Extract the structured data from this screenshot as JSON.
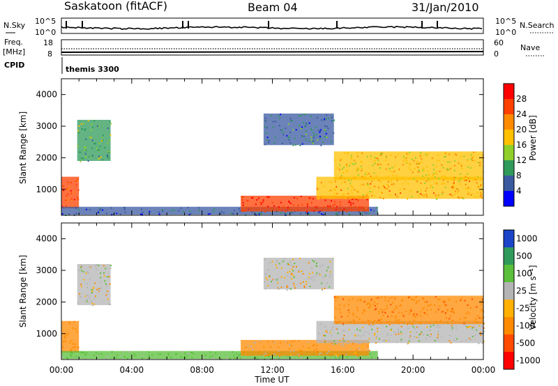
{
  "header": {
    "station": "Saskatoon (fitACF)",
    "beam": "Beam 04",
    "date": "31/Jan/2010"
  },
  "panels": {
    "nsky": {
      "label": "N.Sky",
      "right_label": "N.Search",
      "left_ticks": [
        "10^5",
        "10^0"
      ],
      "right_ticks": [
        "10^5",
        "10^0"
      ]
    },
    "freq": {
      "label_1": "Freq.",
      "label_2": "[MHz]",
      "right_label": "Nave",
      "left_ticks": [
        "18",
        "8"
      ],
      "right_ticks": [
        "60",
        "0"
      ]
    },
    "cpid": {
      "label": "CPID",
      "value": "themis 3300"
    }
  },
  "colorbars": {
    "power": {
      "label": "Power [dB]",
      "ticks": [
        "28",
        "24",
        "20",
        "16",
        "12",
        "8",
        "4"
      ],
      "colors": [
        "#ff0000",
        "#ff4000",
        "#ff8a00",
        "#ffc000",
        "#8fcf2a",
        "#2f9a5a",
        "#3a5aa0",
        "#0000ff"
      ]
    },
    "velocity": {
      "label": "Velocity [m s⁻¹]",
      "ticks": [
        "1000",
        "500",
        "100",
        "25",
        "-25",
        "-100",
        "-500",
        "-1000"
      ],
      "colors": [
        "#1c44c8",
        "#2f9a5a",
        "#5abf3a",
        "#b4b4b4",
        "#ffb000",
        "#ff8a00",
        "#ff4a00",
        "#ff0000"
      ]
    }
  },
  "chart_data": [
    {
      "type": "heatmap",
      "panel": "power",
      "title": "",
      "xlabel": "",
      "ylabel": "Slant Range [km]",
      "xlim": [
        "00:00",
        "24:00"
      ],
      "ylim": [
        180,
        4500
      ],
      "x_tick_labels": [
        "00:00",
        "04:00",
        "08:00",
        "12:00",
        "16:00",
        "20:00",
        "00:00"
      ],
      "y_tick_labels": [
        "1000",
        "2000",
        "3000",
        "4000"
      ],
      "y_ticks": [
        1000,
        2000,
        3000,
        4000
      ],
      "echo_regions": [
        {
          "t0": 0.0,
          "t1": 1.0,
          "r0": 400,
          "r1": 1400,
          "power_db": 26
        },
        {
          "t0": 0.9,
          "t1": 2.8,
          "r0": 1900,
          "r1": 3200,
          "power_db": 12
        },
        {
          "t0": 0.0,
          "t1": 18.0,
          "r0": 200,
          "r1": 450,
          "power_db": 6
        },
        {
          "t0": 10.2,
          "t1": 17.5,
          "r0": 300,
          "r1": 800,
          "power_db": 28
        },
        {
          "t0": 11.5,
          "t1": 15.5,
          "r0": 2400,
          "r1": 3400,
          "power_db": 8
        },
        {
          "t0": 14.5,
          "t1": 24.0,
          "r0": 700,
          "r1": 1400,
          "power_db": 20
        },
        {
          "t0": 15.5,
          "t1": 24.0,
          "r0": 1300,
          "r1": 2200,
          "power_db": 18
        }
      ]
    },
    {
      "type": "heatmap",
      "panel": "velocity",
      "title": "",
      "xlabel": "Time UT",
      "ylabel": "Slant Range [km]",
      "xlim": [
        "00:00",
        "24:00"
      ],
      "ylim": [
        180,
        4500
      ],
      "x_tick_labels": [
        "00:00",
        "04:00",
        "08:00",
        "12:00",
        "16:00",
        "20:00",
        "00:00"
      ],
      "y_tick_labels": [
        "1000",
        "2000",
        "3000",
        "4000"
      ],
      "y_ticks": [
        1000,
        2000,
        3000,
        4000
      ],
      "echo_regions": [
        {
          "t0": 0.0,
          "t1": 1.0,
          "r0": 400,
          "r1": 1400,
          "velocity_ms": -200
        },
        {
          "t0": 0.9,
          "t1": 2.8,
          "r0": 1900,
          "r1": 3200,
          "velocity_ms": 0
        },
        {
          "t0": 0.0,
          "t1": 18.0,
          "r0": 200,
          "r1": 450,
          "velocity_ms": 120
        },
        {
          "t0": 10.2,
          "t1": 17.5,
          "r0": 300,
          "r1": 800,
          "velocity_ms": -60
        },
        {
          "t0": 11.5,
          "t1": 15.5,
          "r0": 2400,
          "r1": 3400,
          "velocity_ms": 0
        },
        {
          "t0": 14.5,
          "t1": 24.0,
          "r0": 700,
          "r1": 1400,
          "velocity_ms": 0
        },
        {
          "t0": 15.5,
          "t1": 24.0,
          "r0": 1300,
          "r1": 2200,
          "velocity_ms": -250
        }
      ]
    }
  ]
}
